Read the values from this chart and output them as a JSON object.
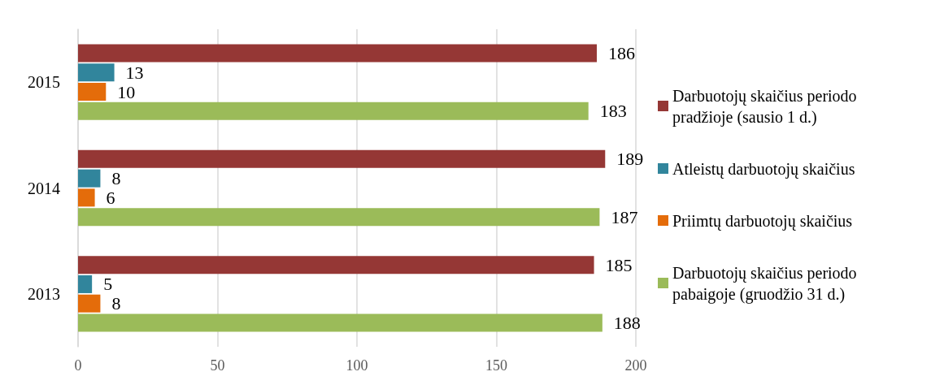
{
  "chart_data": {
    "type": "bar",
    "orientation": "horizontal",
    "categories": [
      "2015",
      "2014",
      "2013"
    ],
    "series": [
      {
        "name": "Darbuotojų skaičius periodo pradžioje (sausio 1 d.)",
        "color": "#953735",
        "values": [
          186,
          189,
          185
        ]
      },
      {
        "name": "Atleistų darbuotojų skaičius",
        "color": "#31859c",
        "values": [
          13,
          8,
          5
        ]
      },
      {
        "name": "Priimtų darbuotojų skaičius",
        "color": "#e46c0a",
        "values": [
          10,
          6,
          8
        ]
      },
      {
        "name": "Darbuotojų skaičius periodo pabaigoje (gruodžio 31 d.)",
        "color": "#9bbb59",
        "values": [
          183,
          187,
          188
        ]
      }
    ],
    "xlim": [
      0,
      200
    ],
    "xticks": [
      0,
      50,
      100,
      150,
      200
    ],
    "grid": "x",
    "legend": "right",
    "data_labels": true
  }
}
